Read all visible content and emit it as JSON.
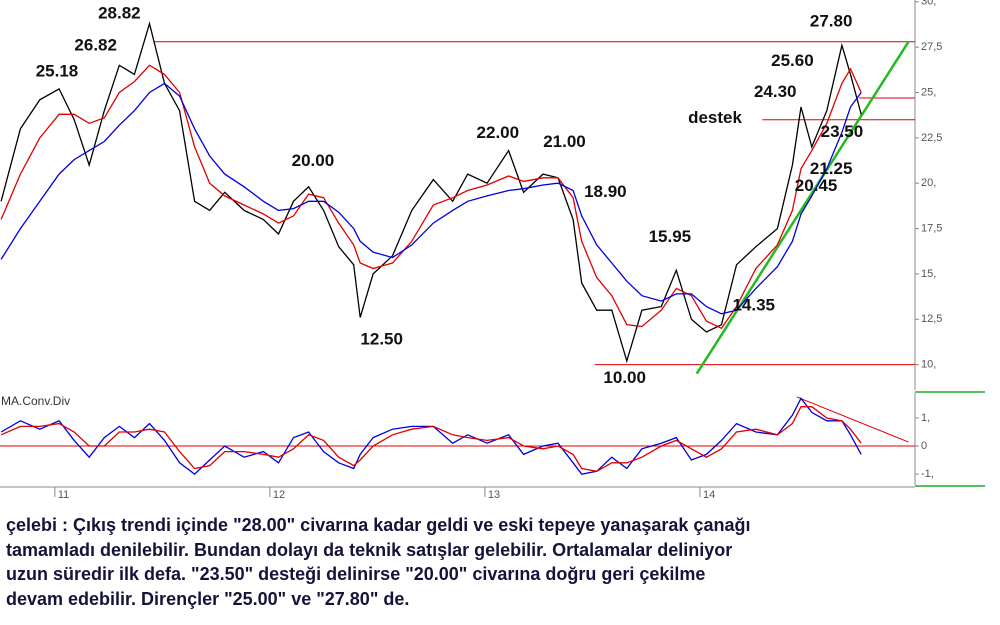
{
  "chart_data": [
    {
      "type": "line",
      "x": [
        10.75,
        10.84,
        10.93,
        11.02,
        11.09,
        11.16,
        11.23,
        11.3,
        11.37,
        11.44,
        11.51,
        11.58,
        11.65,
        11.72,
        11.79,
        11.88,
        11.97,
        12.04,
        12.11,
        12.18,
        12.25,
        12.32,
        12.39,
        12.42,
        12.48,
        12.57,
        12.66,
        12.76,
        12.85,
        12.92,
        13.01,
        13.11,
        13.18,
        13.27,
        13.34,
        13.41,
        13.45,
        13.52,
        13.59,
        13.66,
        13.73,
        13.82,
        13.89,
        13.96,
        14.03,
        14.1,
        14.17,
        14.26,
        14.36,
        14.43,
        14.47,
        14.52,
        14.59,
        14.66,
        14.7,
        14.75
      ],
      "series": [
        {
          "color": "#000000",
          "values": [
            19.0,
            23.0,
            24.6,
            25.2,
            23.5,
            21.0,
            24.0,
            26.5,
            26.0,
            28.8,
            25.5,
            24.0,
            19.0,
            18.5,
            19.5,
            18.5,
            18.0,
            17.2,
            19.0,
            19.8,
            18.5,
            16.5,
            15.5,
            12.6,
            15.0,
            16.0,
            18.5,
            20.2,
            19.0,
            20.5,
            20.0,
            21.8,
            19.5,
            20.5,
            20.3,
            18.0,
            14.5,
            13.0,
            13.0,
            10.2,
            13.0,
            13.2,
            15.2,
            12.5,
            11.8,
            12.2,
            15.5,
            16.5,
            17.5,
            21.0,
            24.2,
            22.0,
            24.0,
            27.6,
            26.0,
            23.8
          ]
        },
        {
          "color": "#e00000",
          "values": [
            18.0,
            20.5,
            22.5,
            23.8,
            23.8,
            23.3,
            23.6,
            25.0,
            25.6,
            26.5,
            26.0,
            25.0,
            22.0,
            20.0,
            19.3,
            18.8,
            18.3,
            17.8,
            18.2,
            19.4,
            19.2,
            17.8,
            16.6,
            15.6,
            15.3,
            15.6,
            16.8,
            18.8,
            19.2,
            19.6,
            19.9,
            20.4,
            20.1,
            20.3,
            20.3,
            19.2,
            16.8,
            14.8,
            13.8,
            12.2,
            12.1,
            13.0,
            14.2,
            13.8,
            12.4,
            12.0,
            13.2,
            15.3,
            16.6,
            18.5,
            20.8,
            21.8,
            23.3,
            25.5,
            26.3,
            25.0
          ]
        },
        {
          "color": "#0000dd",
          "values": [
            15.8,
            17.5,
            19.0,
            20.5,
            21.3,
            21.8,
            22.3,
            23.2,
            24.0,
            25.0,
            25.5,
            24.8,
            23.0,
            21.5,
            20.5,
            19.8,
            19.0,
            18.5,
            18.6,
            19.0,
            19.0,
            18.4,
            17.5,
            16.8,
            16.2,
            15.9,
            16.6,
            17.8,
            18.5,
            19.0,
            19.3,
            19.6,
            19.7,
            19.9,
            20.0,
            19.6,
            18.2,
            16.6,
            15.6,
            14.6,
            13.8,
            13.5,
            13.9,
            13.9,
            13.2,
            12.8,
            13.0,
            14.2,
            15.4,
            16.8,
            18.3,
            19.3,
            20.8,
            22.8,
            24.2,
            25.0
          ]
        }
      ],
      "xlim": [
        10.745,
        15.0
      ],
      "ylim": [
        8.6,
        30.1
      ],
      "yticks": [
        {
          "value": 10,
          "label": "10,"
        },
        {
          "value": 12.5,
          "label": "12,5"
        },
        {
          "value": 15,
          "label": "15,"
        },
        {
          "value": 17.5,
          "label": "17,5"
        },
        {
          "value": 20,
          "label": "20,"
        },
        {
          "value": 22.5,
          "label": "22,5"
        },
        {
          "value": 25,
          "label": "25,"
        },
        {
          "value": 27.5,
          "label": "27,5"
        },
        {
          "value": 30,
          "label": "30,"
        }
      ],
      "lines": [
        {
          "color": "#e00000",
          "x": [
            11.46,
            15.0
          ],
          "y": [
            27.8,
            27.8
          ]
        },
        {
          "color": "#e00000",
          "x": [
            14.74,
            15.0
          ],
          "y": [
            24.7,
            24.7
          ]
        },
        {
          "color": "#e00000",
          "x": [
            14.29,
            15.0
          ],
          "y": [
            23.5,
            23.5
          ]
        },
        {
          "color": "#e00000",
          "x": [
            13.51,
            15.0
          ],
          "y": [
            10,
            10
          ]
        },
        {
          "color": "#22bb22",
          "x": [
            13.985,
            14.97
          ],
          "y": [
            9.5,
            27.8
          ]
        }
      ],
      "annotations": [
        {
          "label": "28.82",
          "x": 11.3,
          "y": 29.33
        },
        {
          "label": "26.82",
          "x": 11.19,
          "y": 27.57
        },
        {
          "label": "25.18",
          "x": 11.01,
          "y": 26.14
        },
        {
          "label": "20.00",
          "x": 12.2,
          "y": 21.2
        },
        {
          "label": "12.50",
          "x": 12.52,
          "y": 11.36
        },
        {
          "label": "22.00",
          "x": 13.06,
          "y": 22.74
        },
        {
          "label": "21.00",
          "x": 13.37,
          "y": 22.24
        },
        {
          "label": "18.90",
          "x": 13.56,
          "y": 19.5
        },
        {
          "label": "15.95",
          "x": 13.86,
          "y": 17.0
        },
        {
          "label": "10.00",
          "x": 13.65,
          "y": 9.22
        },
        {
          "label": "14.35",
          "x": 14.25,
          "y": 13.23
        },
        {
          "label": "24.30",
          "x": 14.35,
          "y": 25.0
        },
        {
          "label": "25.60",
          "x": 14.43,
          "y": 26.7
        },
        {
          "label": "27.80",
          "x": 14.61,
          "y": 28.9
        },
        {
          "label": "destek",
          "x": 14.07,
          "y": 23.56
        },
        {
          "label": "23.50",
          "x": 14.66,
          "y": 22.79
        },
        {
          "label": "21.25",
          "x": 14.61,
          "y": 20.76
        },
        {
          "label": "20.45",
          "x": 14.54,
          "y": 19.83
        }
      ]
    },
    {
      "type": "line",
      "title": "MA.Conv.Div",
      "x": [
        10.75,
        10.84,
        10.93,
        11.02,
        11.09,
        11.16,
        11.23,
        11.3,
        11.37,
        11.44,
        11.51,
        11.58,
        11.65,
        11.72,
        11.79,
        11.88,
        11.97,
        12.04,
        12.11,
        12.18,
        12.25,
        12.32,
        12.39,
        12.42,
        12.48,
        12.57,
        12.66,
        12.76,
        12.85,
        12.92,
        13.01,
        13.11,
        13.18,
        13.27,
        13.34,
        13.41,
        13.45,
        13.52,
        13.59,
        13.66,
        13.73,
        13.82,
        13.89,
        13.96,
        14.03,
        14.1,
        14.17,
        14.26,
        14.36,
        14.43,
        14.47,
        14.52,
        14.59,
        14.66,
        14.7,
        14.75
      ],
      "series": [
        {
          "color": "#0000dd",
          "values": [
            0.5,
            0.9,
            0.6,
            0.9,
            0.2,
            -0.4,
            0.3,
            0.7,
            0.3,
            0.8,
            0.2,
            -0.6,
            -1.0,
            -0.5,
            0.0,
            -0.4,
            -0.2,
            -0.6,
            0.3,
            0.5,
            -0.2,
            -0.6,
            -0.8,
            -0.3,
            0.3,
            0.6,
            0.7,
            0.7,
            0.1,
            0.4,
            0.1,
            0.4,
            -0.3,
            0.0,
            0.1,
            -0.6,
            -1.0,
            -0.9,
            -0.4,
            -0.8,
            -0.1,
            0.1,
            0.3,
            -0.5,
            -0.3,
            0.2,
            0.8,
            0.5,
            0.4,
            1.1,
            1.7,
            1.2,
            0.9,
            0.9,
            0.4,
            -0.3
          ]
        },
        {
          "color": "#e00000",
          "values": [
            0.4,
            0.7,
            0.7,
            0.8,
            0.5,
            0.0,
            0.0,
            0.5,
            0.5,
            0.6,
            0.5,
            -0.2,
            -0.8,
            -0.7,
            -0.2,
            -0.2,
            -0.3,
            -0.4,
            -0.1,
            0.4,
            0.2,
            -0.4,
            -0.7,
            -0.5,
            0.0,
            0.4,
            0.6,
            0.7,
            0.4,
            0.3,
            0.2,
            0.3,
            0.0,
            -0.1,
            0.0,
            -0.3,
            -0.8,
            -0.9,
            -0.6,
            -0.6,
            -0.4,
            0.0,
            0.2,
            -0.1,
            -0.4,
            -0.1,
            0.5,
            0.6,
            0.4,
            0.8,
            1.4,
            1.4,
            1.0,
            0.9,
            0.6,
            0.1
          ]
        }
      ],
      "xlim": [
        10.745,
        15.0
      ],
      "ylim": [
        -1.39,
        1.89
      ],
      "xticks": [
        11,
        12,
        13,
        14
      ],
      "yticks": [
        {
          "value": -1,
          "label": "-1,"
        },
        0,
        {
          "value": 1,
          "label": "1,"
        }
      ],
      "lines": [
        {
          "color": "#e00000",
          "x": [
            10.745,
            15.0
          ],
          "y": [
            0,
            0
          ]
        },
        {
          "color": "#e00000",
          "x": [
            14.45,
            14.97
          ],
          "y": [
            1.75,
            0.14
          ]
        }
      ]
    }
  ],
  "text": {
    "lines": [
      "çelebi : Çıkış trendi içinde \"28.00\" civarına kadar geldi ve eski tepeye yanaşarak çanağı",
      "tamamladı denilebilir. Bundan dolayı da teknik satışlar gelebilir. Ortalamalar deliniyor",
      "uzun süredir ilk defa. \"23.50\" desteği delinirse \"20.00\" civarına doğru geri çekilme",
      "devam edebilir. Dirençler \"25.00\" ve \"27.80\" de."
    ]
  }
}
